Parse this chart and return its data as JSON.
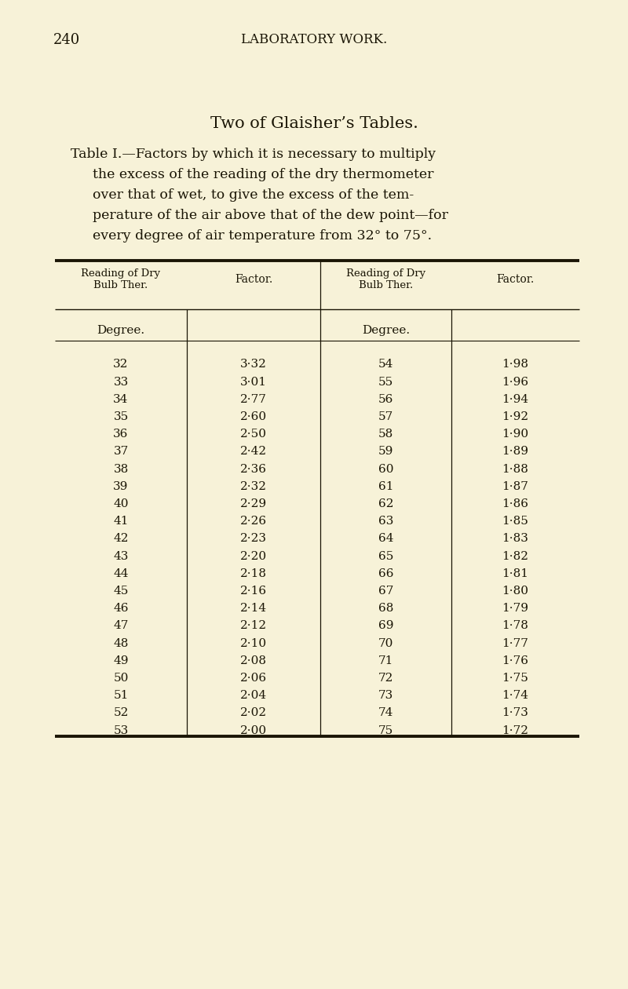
{
  "page_number": "240",
  "page_header": "LABORATORY WORK.",
  "title_prefix": "Two ",
  "title_small_caps": "of",
  "title_main": " Glaisher’s Tables.",
  "title_full": "Two of Glaisher’s Tables.",
  "subtitle_line0": "Table I.—Factors by which it is necessary to multiply",
  "subtitle_line1": "the excess of the reading of the dry thermometer",
  "subtitle_line2": "over that of wet, to give the excess of the tem-",
  "subtitle_line3": "perature of the air above that of the dew point—for",
  "subtitle_line4": "every degree of air temperature from 32° to 75°.",
  "col_header1a": "Reading of Dry",
  "col_header1b": "Bulb Ther.",
  "col_header2": "Factor.",
  "col_header3a": "Reading of Dry",
  "col_header3b": "Bulb Ther.",
  "col_header4": "Factor.",
  "degree_label": "Degree.",
  "left_degrees": [
    32,
    33,
    34,
    35,
    36,
    37,
    38,
    39,
    40,
    41,
    42,
    43,
    44,
    45,
    46,
    47,
    48,
    49,
    50,
    51,
    52,
    53
  ],
  "left_factors": [
    "3·32",
    "3·01",
    "2·77",
    "2·60",
    "2·50",
    "2·42",
    "2·36",
    "2·32",
    "2·29",
    "2·26",
    "2·23",
    "2·20",
    "2·18",
    "2·16",
    "2·14",
    "2·12",
    "2·10",
    "2·08",
    "2·06",
    "2·04",
    "2·02",
    "2·00"
  ],
  "right_degrees": [
    54,
    55,
    56,
    57,
    58,
    59,
    60,
    61,
    62,
    63,
    64,
    65,
    66,
    67,
    68,
    69,
    70,
    71,
    72,
    73,
    74,
    75
  ],
  "right_factors": [
    "1·98",
    "1·96",
    "1·94",
    "1·92",
    "1·90",
    "1·89",
    "1·88",
    "1·87",
    "1·86",
    "1·85",
    "1·83",
    "1·82",
    "1·81",
    "1·80",
    "1·79",
    "1·78",
    "1·77",
    "1·76",
    "1·75",
    "1·74",
    "1·73",
    "1·72"
  ],
  "bg_color": "#f7f2d8",
  "text_color": "#1a1505",
  "line_color": "#1a1505",
  "fig_width": 8.0,
  "fig_height": 12.6,
  "dpi": 100
}
